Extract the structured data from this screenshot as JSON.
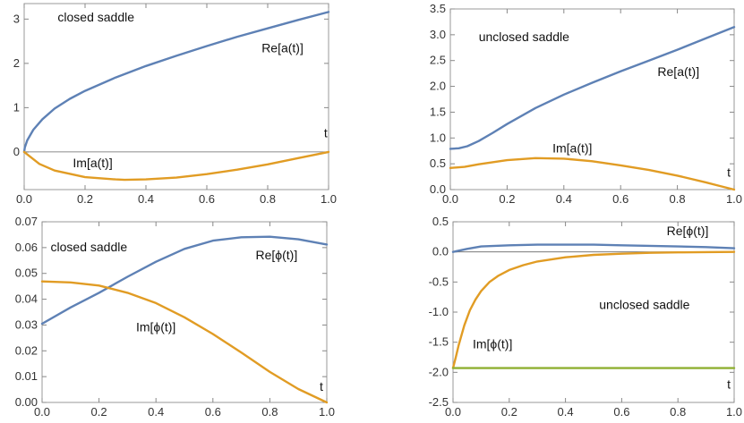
{
  "colors": {
    "re": "#5E81B5",
    "im": "#E19C24",
    "extra": "#8FB032"
  },
  "chart_data": [
    {
      "type": "line",
      "title": "",
      "xlabel": "t",
      "ylabel": "",
      "xlim": [
        0,
        1
      ],
      "ylim": [
        -0.85,
        3.35
      ],
      "xticks": [
        0.0,
        0.2,
        0.4,
        0.6,
        0.8,
        1.0
      ],
      "xtick_labels": [
        "0.0",
        "0.2",
        "0.4",
        "0.6",
        "0.8",
        "1.0"
      ],
      "yticks": [
        0,
        1,
        2,
        3
      ],
      "ytick_labels": [
        "0",
        "1",
        "2",
        "3"
      ],
      "zero_line": true,
      "annotations": [
        {
          "text": "closed saddle",
          "x": 0.11,
          "y": 2.95
        },
        {
          "text": "Re[a(t)]",
          "x": 0.78,
          "y": 2.25
        },
        {
          "text": "Im[a(t)]",
          "x": 0.16,
          "y": -0.35
        },
        {
          "text": "t",
          "x": 0.985,
          "y": 0.33
        }
      ],
      "series": [
        {
          "name": "Re[a(t)]",
          "color": "#5E81B5",
          "x": [
            0,
            0.002,
            0.01,
            0.03,
            0.06,
            0.1,
            0.15,
            0.2,
            0.3,
            0.4,
            0.5,
            0.6,
            0.7,
            0.8,
            0.9,
            1.0
          ],
          "y": [
            0,
            0.1,
            0.26,
            0.5,
            0.74,
            0.98,
            1.2,
            1.38,
            1.68,
            1.94,
            2.17,
            2.39,
            2.6,
            2.79,
            2.98,
            3.16
          ]
        },
        {
          "name": "Im[a(t)]",
          "color": "#E19C24",
          "x": [
            0,
            0.05,
            0.1,
            0.2,
            0.3,
            0.33,
            0.4,
            0.5,
            0.6,
            0.7,
            0.8,
            0.9,
            1.0
          ],
          "y": [
            0,
            -0.27,
            -0.42,
            -0.57,
            -0.62,
            -0.63,
            -0.62,
            -0.58,
            -0.5,
            -0.4,
            -0.28,
            -0.14,
            0
          ]
        }
      ]
    },
    {
      "type": "line",
      "title": "",
      "xlabel": "t",
      "ylabel": "",
      "xlim": [
        0,
        1
      ],
      "ylim": [
        0,
        3.5
      ],
      "xticks": [
        0.0,
        0.2,
        0.4,
        0.6,
        0.8,
        1.0
      ],
      "xtick_labels": [
        "0.0",
        "0.2",
        "0.4",
        "0.6",
        "0.8",
        "1.0"
      ],
      "yticks": [
        0.0,
        0.5,
        1.0,
        1.5,
        2.0,
        2.5,
        3.0,
        3.5
      ],
      "ytick_labels": [
        "0.0",
        "0.5",
        "1.0",
        "1.5",
        "2.0",
        "2.5",
        "3.0",
        "3.5"
      ],
      "zero_line": false,
      "annotations": [
        {
          "text": "unclosed saddle",
          "x": 0.1,
          "y": 2.88
        },
        {
          "text": "Re[a(t)]",
          "x": 0.73,
          "y": 2.2
        },
        {
          "text": "Im[a(t)]",
          "x": 0.36,
          "y": 0.72
        },
        {
          "text": "t",
          "x": 0.975,
          "y": 0.25
        }
      ],
      "series": [
        {
          "name": "Re[a(t)]",
          "color": "#5E81B5",
          "x": [
            0,
            0.03,
            0.06,
            0.1,
            0.15,
            0.2,
            0.3,
            0.4,
            0.5,
            0.6,
            0.7,
            0.8,
            0.9,
            1.0
          ],
          "y": [
            0.79,
            0.8,
            0.84,
            0.94,
            1.1,
            1.27,
            1.58,
            1.84,
            2.07,
            2.29,
            2.5,
            2.71,
            2.93,
            3.15
          ]
        },
        {
          "name": "Im[a(t)]",
          "color": "#E19C24",
          "x": [
            0,
            0.05,
            0.1,
            0.2,
            0.3,
            0.4,
            0.5,
            0.6,
            0.7,
            0.8,
            0.9,
            0.95,
            1.0
          ],
          "y": [
            0.42,
            0.44,
            0.49,
            0.57,
            0.61,
            0.6,
            0.55,
            0.47,
            0.38,
            0.27,
            0.14,
            0.07,
            0.0
          ]
        }
      ]
    },
    {
      "type": "line",
      "title": "",
      "xlabel": "t",
      "ylabel": "",
      "xlim": [
        0,
        1
      ],
      "ylim": [
        0,
        0.07
      ],
      "xticks": [
        0.0,
        0.2,
        0.4,
        0.6,
        0.8,
        1.0
      ],
      "xtick_labels": [
        "0.0",
        "0.2",
        "0.4",
        "0.6",
        "0.8",
        "1.0"
      ],
      "yticks": [
        0.0,
        0.01,
        0.02,
        0.03,
        0.04,
        0.05,
        0.06,
        0.07
      ],
      "ytick_labels": [
        "0.00",
        "0.01",
        "0.02",
        "0.03",
        "0.04",
        "0.05",
        "0.06",
        "0.07"
      ],
      "zero_line": false,
      "annotations": [
        {
          "text": "closed saddle",
          "x": 0.03,
          "y": 0.0585
        },
        {
          "text": "Re[ϕ(t)]",
          "x": 0.75,
          "y": 0.0555
        },
        {
          "text": "Im[ϕ(t)]",
          "x": 0.33,
          "y": 0.0275
        },
        {
          "text": "t",
          "x": 0.975,
          "y": 0.0045
        }
      ],
      "series": [
        {
          "name": "Re[ϕ(t)]",
          "color": "#5E81B5",
          "x": [
            0,
            0.1,
            0.2,
            0.3,
            0.4,
            0.5,
            0.6,
            0.7,
            0.8,
            0.9,
            1.0
          ],
          "y": [
            0.0305,
            0.0368,
            0.0425,
            0.0487,
            0.0545,
            0.0595,
            0.0627,
            0.064,
            0.0642,
            0.0632,
            0.0612
          ]
        },
        {
          "name": "Im[ϕ(t)]",
          "color": "#E19C24",
          "x": [
            0,
            0.1,
            0.2,
            0.3,
            0.4,
            0.5,
            0.6,
            0.7,
            0.8,
            0.9,
            1.0
          ],
          "y": [
            0.0469,
            0.0465,
            0.0453,
            0.0425,
            0.0385,
            0.033,
            0.0265,
            0.0193,
            0.0118,
            0.0052,
            0.0
          ]
        }
      ]
    },
    {
      "type": "line",
      "title": "",
      "xlabel": "t",
      "ylabel": "",
      "xlim": [
        0,
        1
      ],
      "ylim": [
        -2.5,
        0.5
      ],
      "xticks": [
        0.0,
        0.2,
        0.4,
        0.6,
        0.8,
        1.0
      ],
      "xtick_labels": [
        "0.0",
        "0.2",
        "0.4",
        "0.6",
        "0.8",
        "1.0"
      ],
      "yticks": [
        -2.5,
        -2.0,
        -1.5,
        -1.0,
        -0.5,
        0.0,
        0.5
      ],
      "ytick_labels": [
        "-2.5",
        "-2.0",
        "-1.5",
        "-1.0",
        "-0.5",
        "0.0",
        "0.5"
      ],
      "zero_line": true,
      "annotations": [
        {
          "text": "unclosed saddle",
          "x": 0.52,
          "y": -0.95
        },
        {
          "text": "Re[ϕ(t)]",
          "x": 0.76,
          "y": 0.28
        },
        {
          "text": "Im[ϕ(t)]",
          "x": 0.07,
          "y": -1.6
        },
        {
          "text": "t",
          "x": 0.975,
          "y": -2.27
        }
      ],
      "series": [
        {
          "name": "Re[ϕ(t)]",
          "color": "#5E81B5",
          "x": [
            0,
            0.05,
            0.1,
            0.2,
            0.3,
            0.4,
            0.5,
            0.6,
            0.7,
            0.8,
            0.9,
            1.0
          ],
          "y": [
            0.0,
            0.05,
            0.09,
            0.11,
            0.12,
            0.12,
            0.12,
            0.11,
            0.1,
            0.09,
            0.08,
            0.06
          ]
        },
        {
          "name": "Im[ϕ(t)]",
          "color": "#E19C24",
          "x": [
            0,
            0.01,
            0.02,
            0.04,
            0.06,
            0.08,
            0.1,
            0.13,
            0.16,
            0.2,
            0.25,
            0.3,
            0.4,
            0.5,
            0.6,
            0.7,
            0.8,
            0.9,
            1.0
          ],
          "y": [
            -1.93,
            -1.75,
            -1.55,
            -1.22,
            -0.97,
            -0.79,
            -0.65,
            -0.5,
            -0.4,
            -0.3,
            -0.22,
            -0.16,
            -0.09,
            -0.05,
            -0.03,
            -0.015,
            -0.008,
            -0.003,
            0.0
          ]
        },
        {
          "name": "",
          "color": "#8FB032",
          "x": [
            0,
            1.0
          ],
          "y": [
            -1.93,
            -1.93
          ]
        }
      ]
    }
  ]
}
